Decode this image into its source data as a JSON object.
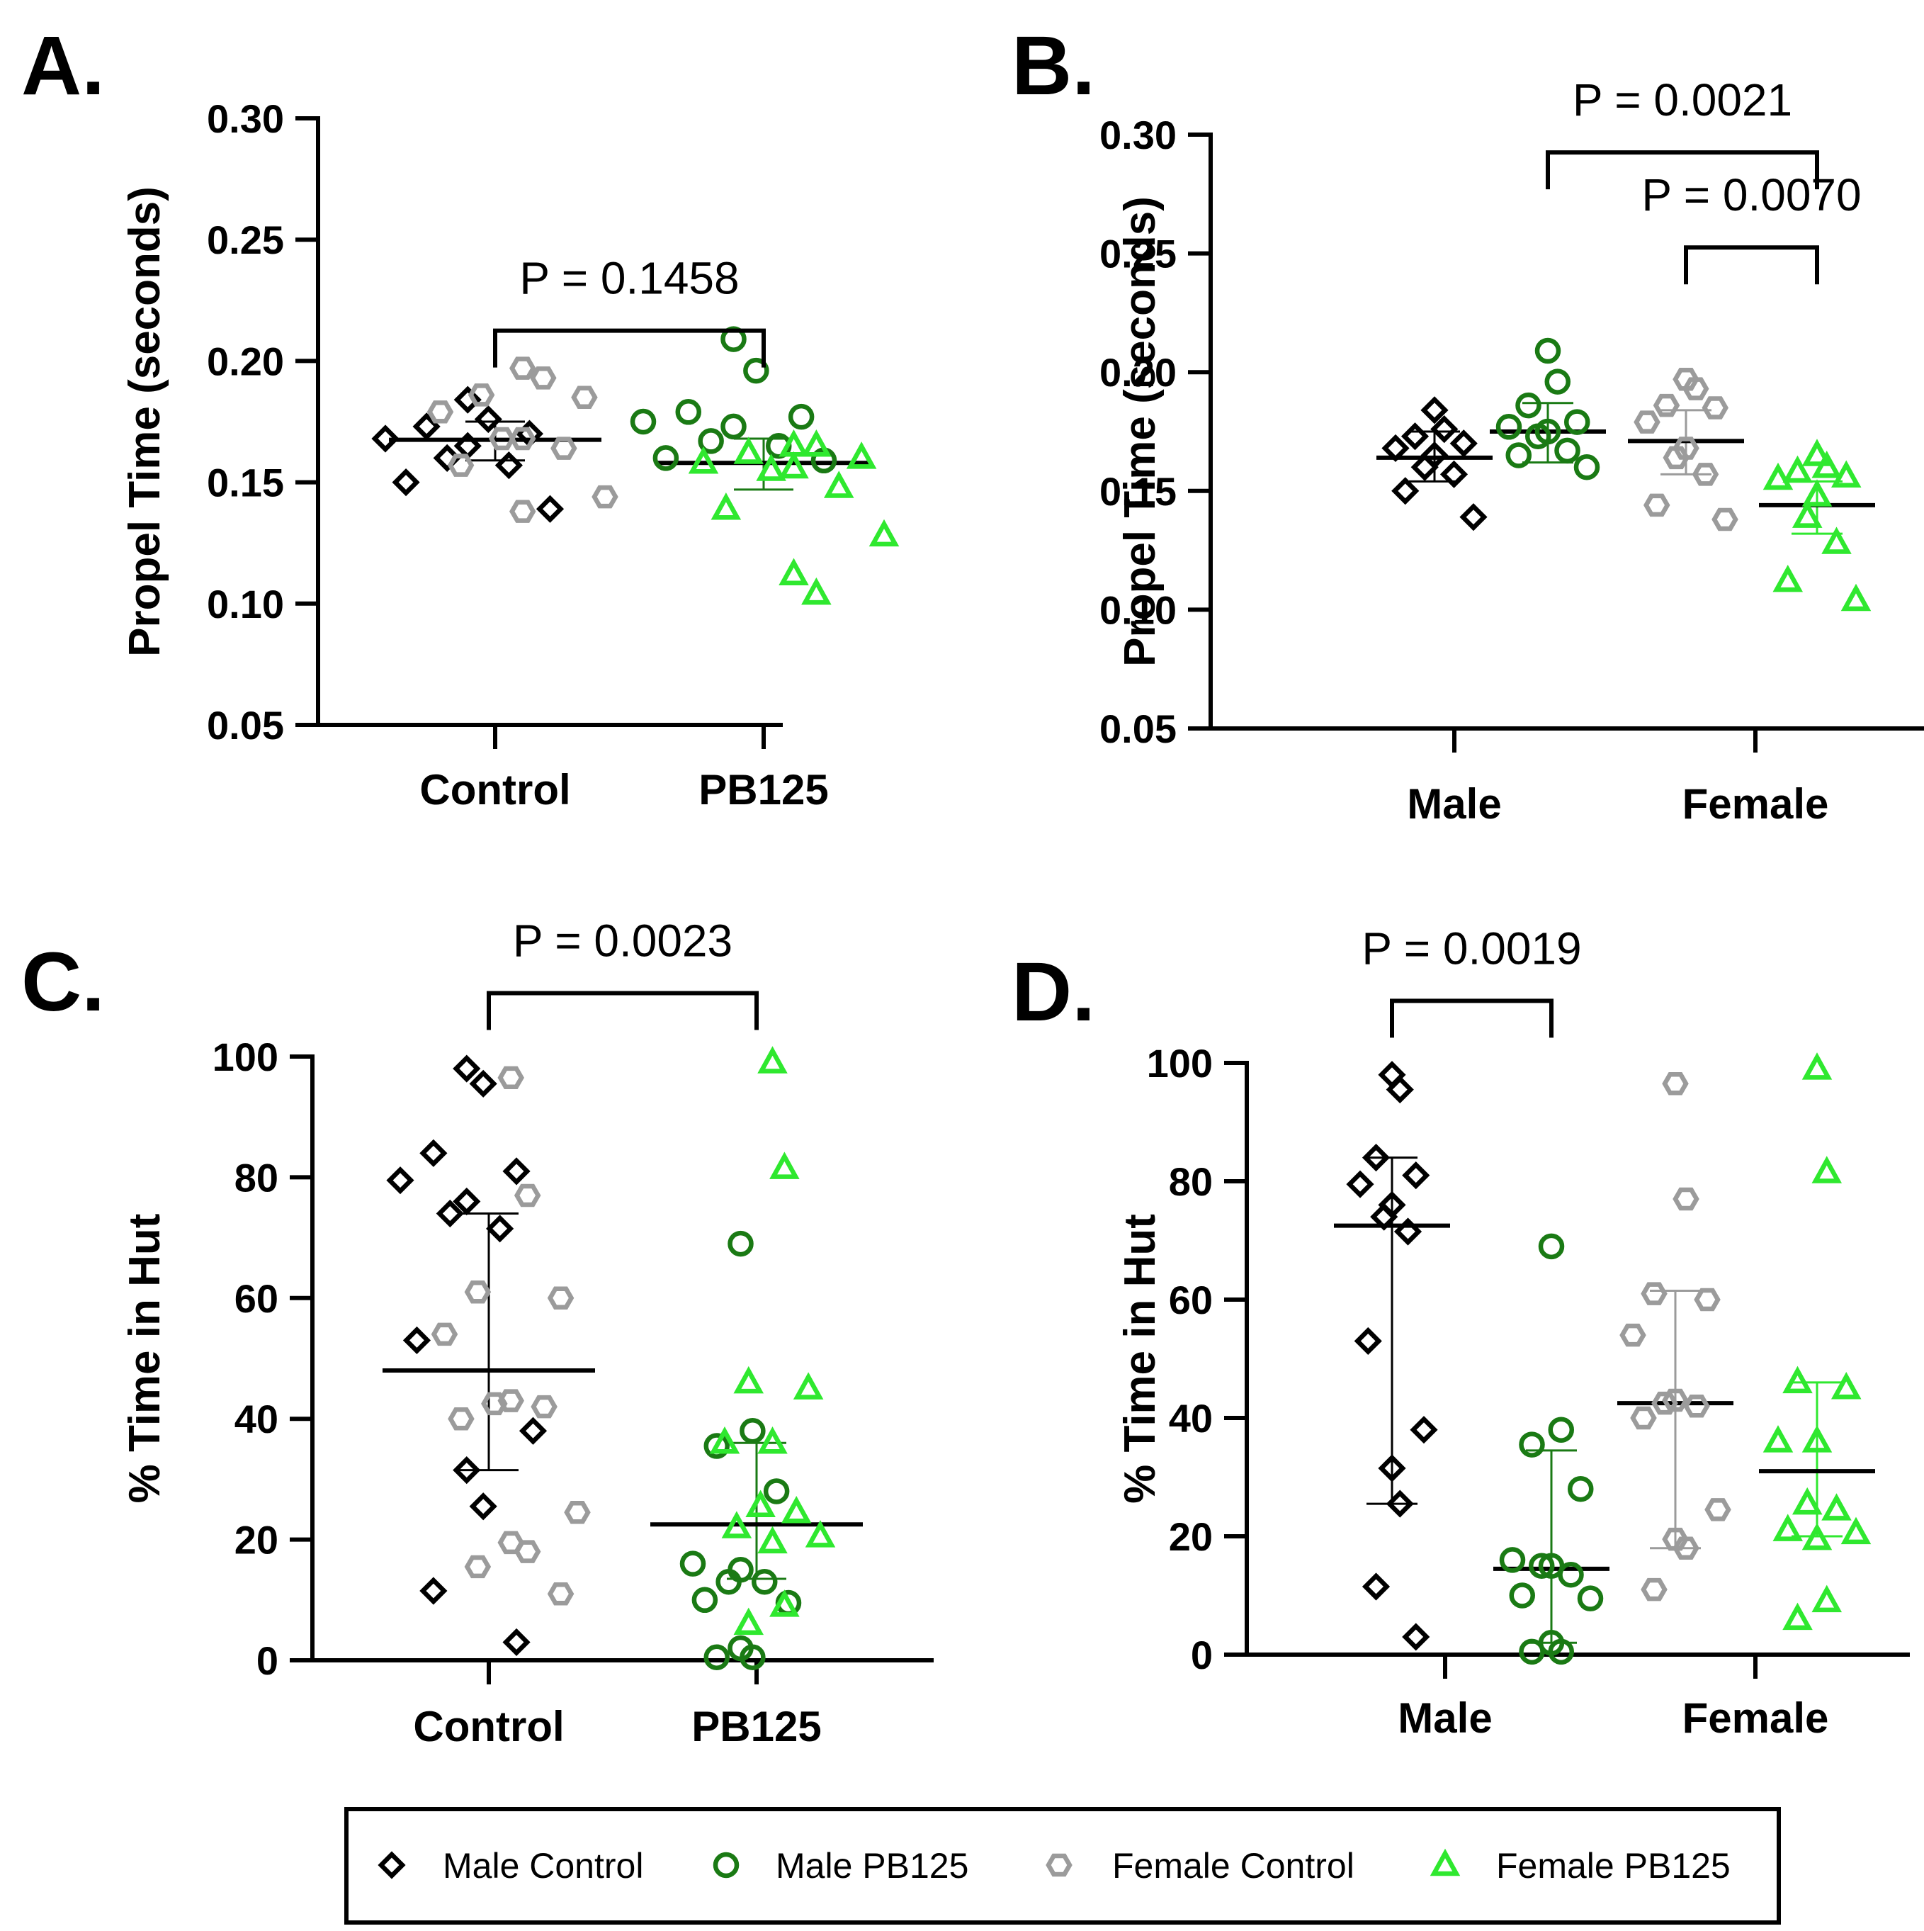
{
  "colors": {
    "male_control": "#000000",
    "male_pb125": "#1a7a14",
    "female_control": "#9b9b9b",
    "female_pb125": "#2fe82f"
  },
  "legend": [
    {
      "label": "Male Control",
      "marker": "diamond",
      "group": "male_control"
    },
    {
      "label": "Male PB125",
      "marker": "circle",
      "group": "male_pb125"
    },
    {
      "label": "Female Control",
      "marker": "hexagon",
      "group": "female_control"
    },
    {
      "label": "Female PB125",
      "marker": "triangle",
      "group": "female_pb125"
    }
  ],
  "chart_data": [
    {
      "panel": "A.",
      "type": "scatter",
      "ylabel": "Propel Time (seconds)",
      "ylim": [
        0.05,
        0.3
      ],
      "yticks": [
        "0.05",
        "0.10",
        "0.15",
        "0.20",
        "0.25",
        "0.30"
      ],
      "categories": [
        "Control",
        "PB125"
      ],
      "series": [
        {
          "name": "Male Control",
          "group": "male_control",
          "category": 0,
          "values": [
            0.184,
            0.176,
            0.173,
            0.17,
            0.168,
            0.165,
            0.16,
            0.157,
            0.15,
            0.139
          ]
        },
        {
          "name": "Female Control",
          "group": "female_control",
          "category": 0,
          "values": [
            0.197,
            0.193,
            0.186,
            0.185,
            0.179,
            0.168,
            0.168,
            0.164,
            0.157,
            0.144,
            0.138
          ]
        },
        {
          "name": "Male PB125",
          "group": "male_pb125",
          "category": 1,
          "values": [
            0.209,
            0.196,
            0.179,
            0.177,
            0.175,
            0.173,
            0.167,
            0.165,
            0.16,
            0.159
          ]
        },
        {
          "name": "Female PB125",
          "group": "female_pb125",
          "category": 1,
          "values": [
            0.165,
            0.165,
            0.162,
            0.16,
            0.158,
            0.156,
            0.155,
            0.148,
            0.139,
            0.128,
            0.112,
            0.104
          ]
        }
      ],
      "summary": [
        {
          "category": 0,
          "median": 0.1675,
          "q1": 0.159,
          "q3": 0.175,
          "group": "male_control"
        },
        {
          "category": 1,
          "median": 0.158,
          "q1": 0.147,
          "q3": 0.168,
          "group": "male_pb125"
        }
      ],
      "comparisons": [
        {
          "from": 0,
          "to": 1,
          "y": 0.2125,
          "label": "P = 0.1458"
        }
      ]
    },
    {
      "panel": "B.",
      "type": "scatter",
      "ylabel": "Propel Time (seconds)",
      "ylim": [
        0.05,
        0.3
      ],
      "yticks": [
        "0.05",
        "0.10",
        "0.15",
        "0.20",
        "0.25",
        "0.30"
      ],
      "categories": [
        "Male",
        "Female"
      ],
      "series": [
        {
          "name": "Male Control",
          "group": "male_control",
          "position": 0,
          "values": [
            0.184,
            0.176,
            0.173,
            0.17,
            0.168,
            0.165,
            0.16,
            0.157,
            0.15,
            0.139
          ]
        },
        {
          "name": "Male PB125",
          "group": "male_pb125",
          "position": 1,
          "values": [
            0.209,
            0.196,
            0.186,
            0.179,
            0.177,
            0.175,
            0.173,
            0.167,
            0.165,
            0.16
          ]
        },
        {
          "name": "Female Control",
          "group": "female_control",
          "position": 2,
          "values": [
            0.197,
            0.193,
            0.186,
            0.185,
            0.179,
            0.168,
            0.164,
            0.157,
            0.144,
            0.138
          ]
        },
        {
          "name": "Female PB125",
          "group": "female_pb125",
          "position": 3,
          "values": [
            0.165,
            0.16,
            0.158,
            0.156,
            0.155,
            0.148,
            0.139,
            0.128,
            0.112,
            0.104
          ]
        }
      ],
      "summary": [
        {
          "position": 0,
          "median": 0.164,
          "q1": 0.154,
          "q3": 0.175,
          "group": "male_control"
        },
        {
          "position": 1,
          "median": 0.175,
          "q1": 0.162,
          "q3": 0.187,
          "group": "male_pb125"
        },
        {
          "position": 2,
          "median": 0.171,
          "q1": 0.157,
          "q3": 0.184,
          "group": "female_control"
        },
        {
          "position": 3,
          "median": 0.144,
          "q1": 0.132,
          "q3": 0.154,
          "group": "female_pb125"
        }
      ],
      "comparisons": [
        {
          "from": 1,
          "to": 3,
          "y": 0.2925,
          "label": "P = 0.0021"
        },
        {
          "from": 2,
          "to": 3,
          "y": 0.2525,
          "label": "P = 0.0070"
        }
      ]
    },
    {
      "panel": "C.",
      "type": "scatter",
      "ylabel": "% Time in Hut",
      "ylim": [
        0,
        100
      ],
      "yticks": [
        "0",
        "20",
        "40",
        "60",
        "80",
        "100"
      ],
      "categories": [
        "Control",
        "PB125"
      ],
      "series": [
        {
          "name": "Male Control",
          "group": "male_control",
          "category": 0,
          "values": [
            98,
            95.5,
            84,
            81,
            79.5,
            76,
            74,
            71.5,
            53,
            38,
            31.5,
            25.5,
            11.5,
            3
          ]
        },
        {
          "name": "Female Control",
          "group": "female_control",
          "category": 0,
          "values": [
            96.5,
            77,
            61,
            60,
            54,
            43,
            42.5,
            42,
            40,
            24.5,
            19.5,
            18,
            15.5,
            11
          ]
        },
        {
          "name": "Male PB125",
          "group": "male_pb125",
          "category": 1,
          "values": [
            69,
            38,
            35.5,
            28,
            16,
            15,
            13,
            13,
            10,
            9.5,
            2,
            0.5,
            0.5
          ]
        },
        {
          "name": "Female PB125",
          "group": "female_pb125",
          "category": 1,
          "values": [
            99,
            81.5,
            46,
            45,
            36,
            36,
            25.5,
            24.5,
            22,
            20.5,
            19.5,
            9,
            6
          ]
        }
      ],
      "summary": [
        {
          "category": 0,
          "median": 48,
          "q1": 31.5,
          "q3": 74,
          "group": "male_control"
        },
        {
          "category": 1,
          "median": 22.5,
          "q1": 13.5,
          "q3": 36,
          "group": "male_pb125"
        }
      ],
      "comparisons": [
        {
          "from": 0,
          "to": 1,
          "y": 110.5,
          "label": "P = 0.0023"
        }
      ]
    },
    {
      "panel": "D.",
      "type": "scatter",
      "ylabel": "% Time in Hut",
      "ylim": [
        0,
        100
      ],
      "yticks": [
        "0",
        "20",
        "40",
        "60",
        "80",
        "100"
      ],
      "categories": [
        "Male",
        "Female"
      ],
      "series": [
        {
          "name": "Male Control",
          "group": "male_control",
          "position": 0,
          "values": [
            98,
            95.5,
            84,
            81,
            79.5,
            76,
            74,
            71.5,
            53,
            38,
            31.5,
            25.5,
            11.5,
            3
          ]
        },
        {
          "name": "Male PB125",
          "group": "male_pb125",
          "position": 1,
          "values": [
            69,
            38,
            35.5,
            28,
            16,
            15,
            15,
            13.5,
            10,
            9.5,
            2,
            0.5,
            0.5
          ]
        },
        {
          "name": "Female Control",
          "group": "female_control",
          "position": 2,
          "values": [
            96.5,
            77,
            61,
            60,
            54,
            43,
            42.5,
            42,
            40,
            24.5,
            19.5,
            18,
            11
          ]
        },
        {
          "name": "Female PB125",
          "group": "female_pb125",
          "position": 3,
          "values": [
            99,
            81.5,
            46,
            45,
            36,
            36,
            25.5,
            24.5,
            21,
            20.5,
            19.5,
            9,
            6
          ]
        }
      ],
      "summary": [
        {
          "position": 0,
          "median": 72.5,
          "q1": 25.5,
          "q3": 84,
          "group": "male_control"
        },
        {
          "position": 1,
          "median": 14.5,
          "q1": 2,
          "q3": 34.5,
          "group": "male_pb125"
        },
        {
          "position": 2,
          "median": 42.5,
          "q1": 18,
          "q3": 61.5,
          "group": "female_control"
        },
        {
          "position": 3,
          "median": 31,
          "q1": 20,
          "q3": 46,
          "group": "female_pb125"
        }
      ],
      "comparisons": [
        {
          "from": 0,
          "to": 1,
          "y": 110.5,
          "label": "P = 0.0019"
        }
      ]
    }
  ]
}
